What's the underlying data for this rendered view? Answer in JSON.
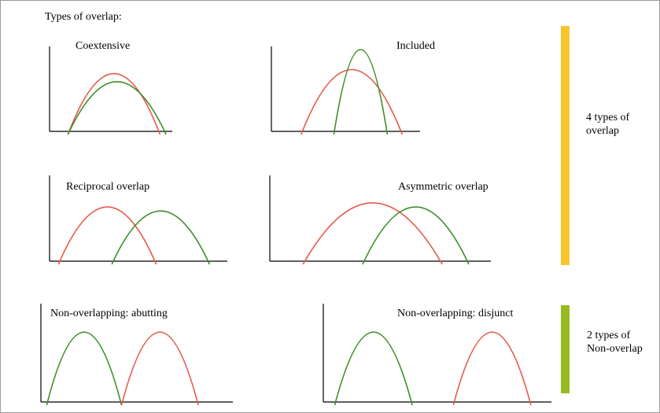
{
  "heading": "Types of overlap:",
  "panels": [
    {
      "id": "coextensive",
      "label": "Coextensive",
      "curves": [
        {
          "color": "red",
          "start": 0.15,
          "end": 0.9,
          "height": 0.7
        },
        {
          "color": "green",
          "start": 0.15,
          "end": 0.95,
          "height": 0.6
        }
      ]
    },
    {
      "id": "included",
      "label": "Included",
      "curves": [
        {
          "color": "red",
          "start": 0.2,
          "end": 0.88,
          "height": 0.75
        },
        {
          "color": "green",
          "start": 0.42,
          "end": 0.78,
          "height": 1.0
        }
      ]
    },
    {
      "id": "reciprocal",
      "label": "Reciprocal overlap",
      "curves": [
        {
          "color": "red",
          "start": 0.05,
          "end": 0.6,
          "height": 0.65
        },
        {
          "color": "green",
          "start": 0.35,
          "end": 0.9,
          "height": 0.6
        }
      ]
    },
    {
      "id": "asymmetric",
      "label": "Asymmetric overlap",
      "curves": [
        {
          "color": "red",
          "start": 0.15,
          "end": 0.78,
          "height": 0.7
        },
        {
          "color": "green",
          "start": 0.42,
          "end": 0.9,
          "height": 0.65
        }
      ]
    },
    {
      "id": "abutting",
      "label": "Non-overlapping: abutting",
      "curves": [
        {
          "color": "green",
          "start": 0.03,
          "end": 0.42,
          "height": 0.73
        },
        {
          "color": "red",
          "start": 0.42,
          "end": 0.82,
          "height": 0.73
        }
      ]
    },
    {
      "id": "disjunct",
      "label": "Non-overlapping: disjunct",
      "curves": [
        {
          "color": "green",
          "start": 0.05,
          "end": 0.39,
          "height": 0.73
        },
        {
          "color": "red",
          "start": 0.57,
          "end": 0.91,
          "height": 0.73
        }
      ]
    }
  ],
  "side_labels": [
    {
      "id": "overlap",
      "lines": [
        "4 types of",
        "overlap"
      ],
      "color": "#f7c52e"
    },
    {
      "id": "nonoverlap",
      "lines": [
        "2 types of",
        "Non-overlap"
      ],
      "color": "#98bb21"
    }
  ],
  "colors": {
    "red": "#e8584a",
    "green": "#3f8e2b",
    "axis": "#000000"
  }
}
